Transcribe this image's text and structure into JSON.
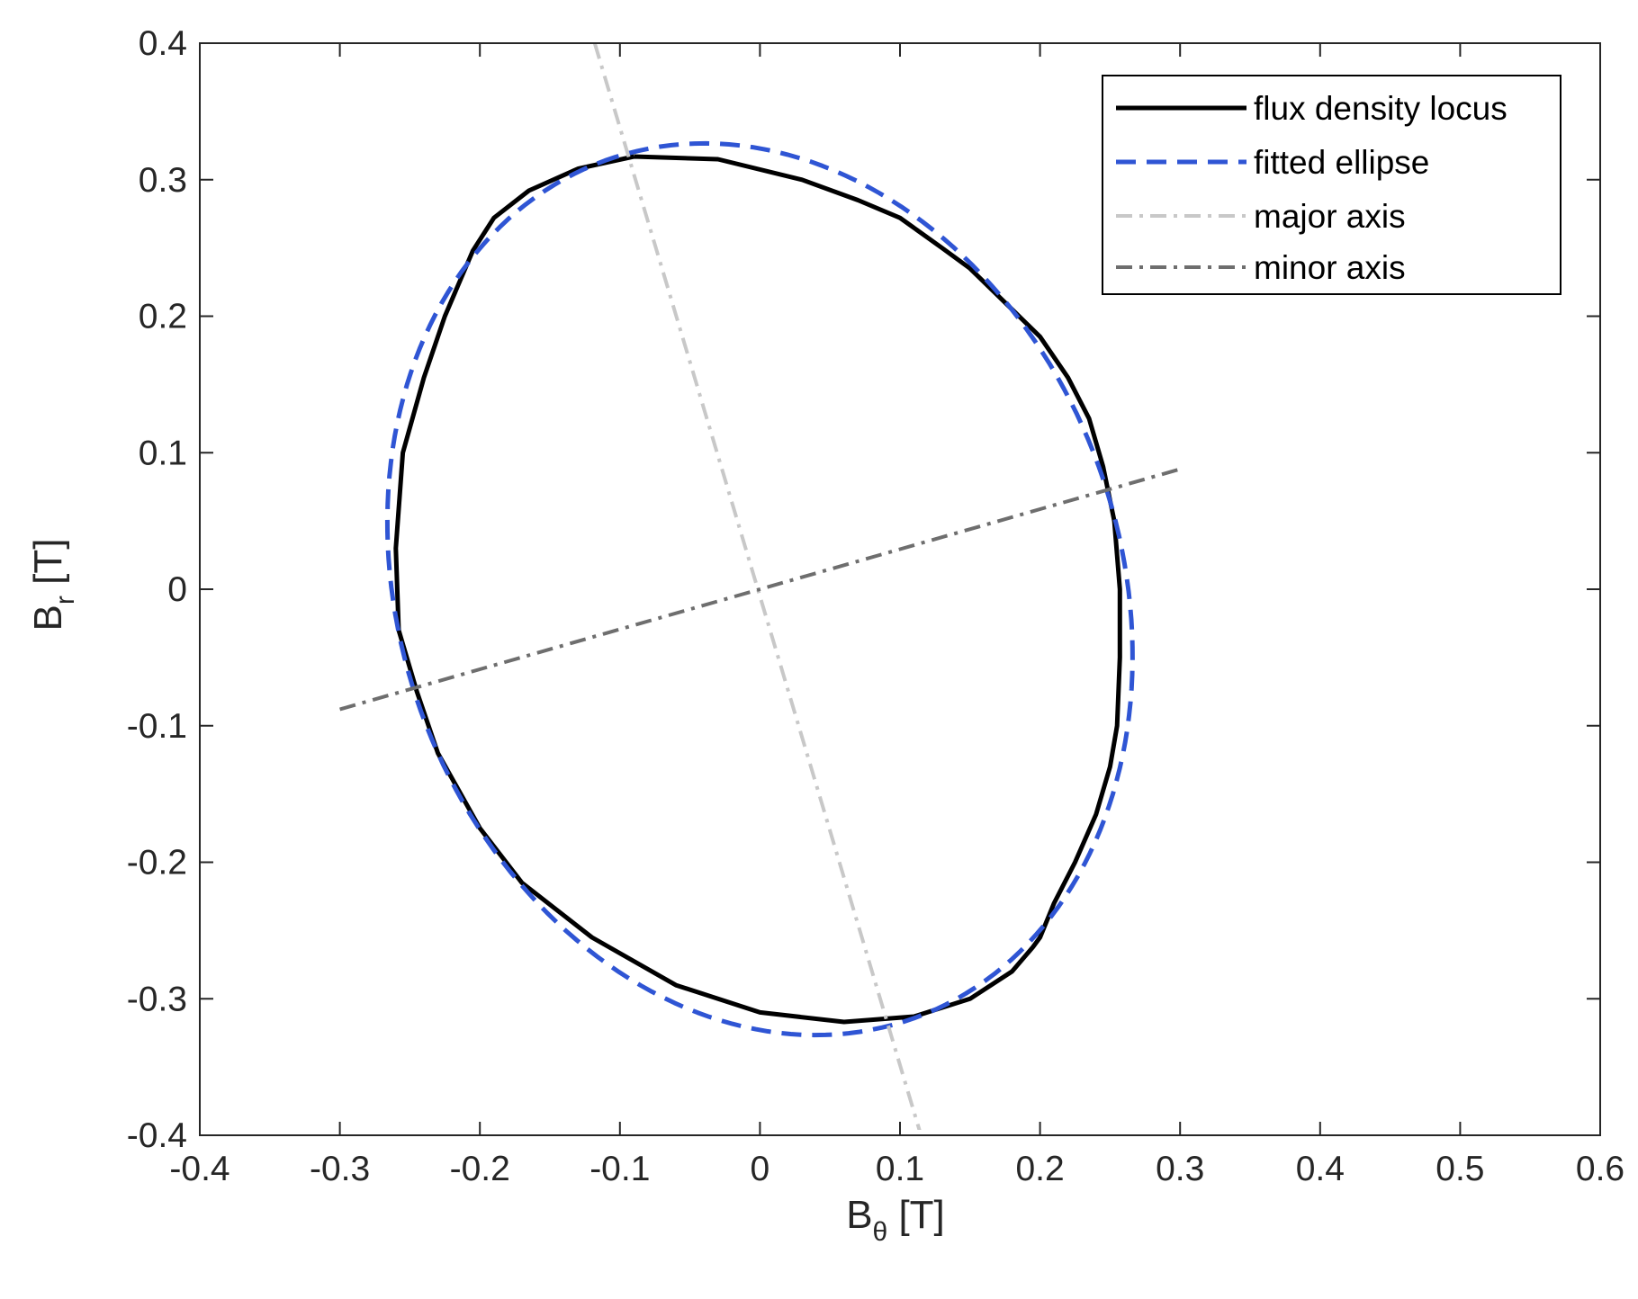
{
  "chart_data": {
    "type": "line",
    "title": "",
    "xlabel": {
      "main": "B",
      "sub": "θ",
      "unit": " [T]"
    },
    "ylabel": {
      "main": "B",
      "sub": "r",
      "unit": " [T]"
    },
    "xlim": [
      -0.4,
      0.6
    ],
    "ylim": [
      -0.4,
      0.4
    ],
    "xticks": [
      -0.4,
      -0.3,
      -0.2,
      -0.1,
      0,
      0.1,
      0.2,
      0.3,
      0.4,
      0.5,
      0.6
    ],
    "xtick_labels": [
      "-0.4",
      "-0.3",
      "-0.2",
      "-0.1",
      "0",
      "0.1",
      "0.2",
      "0.3",
      "0.4",
      "0.5",
      "0.6"
    ],
    "yticks": [
      -0.4,
      -0.3,
      -0.2,
      -0.1,
      0,
      0.1,
      0.2,
      0.3,
      0.4
    ],
    "ytick_labels": [
      "-0.4",
      "-0.3",
      "-0.2",
      "-0.1",
      "0",
      "0.1",
      "0.2",
      "0.3",
      "0.4"
    ],
    "grid": false,
    "legend_position": "top-right",
    "series": [
      {
        "name": "flux density locus",
        "style": "solid",
        "color": "#000000",
        "x": [
          -0.09,
          -0.03,
          0.03,
          0.07,
          0.1,
          0.13,
          0.15,
          0.175,
          0.2,
          0.22,
          0.235,
          0.245,
          0.253,
          0.257,
          0.257,
          0.255,
          0.25,
          0.24,
          0.225,
          0.21,
          0.2,
          0.195,
          0.18,
          0.15,
          0.11,
          0.06,
          0.0,
          -0.06,
          -0.12,
          -0.17,
          -0.2,
          -0.23,
          -0.245,
          -0.258,
          -0.26,
          -0.255,
          -0.24,
          -0.225,
          -0.205,
          -0.19,
          -0.165,
          -0.13,
          -0.09
        ],
        "y": [
          0.317,
          0.315,
          0.3,
          0.285,
          0.272,
          0.25,
          0.235,
          0.21,
          0.185,
          0.155,
          0.125,
          0.09,
          0.05,
          0.0,
          -0.05,
          -0.1,
          -0.13,
          -0.165,
          -0.2,
          -0.23,
          -0.255,
          -0.262,
          -0.28,
          -0.3,
          -0.313,
          -0.317,
          -0.31,
          -0.29,
          -0.255,
          -0.215,
          -0.175,
          -0.12,
          -0.075,
          -0.03,
          0.03,
          0.1,
          0.155,
          0.2,
          0.248,
          0.272,
          0.292,
          0.308,
          0.317
        ]
      },
      {
        "name": "fitted ellipse",
        "style": "dashed",
        "color": "#2f55d4",
        "ellipse": {
          "center": [
            0.0,
            0.0
          ],
          "semi_major": 0.333,
          "semi_minor": 0.258,
          "major_axis_angle_deg": 108
        }
      },
      {
        "name": "major axis",
        "style": "dashdot",
        "color": "#c8c8c8",
        "x": [
          -0.118,
          0.115
        ],
        "y": [
          0.4,
          -0.4
        ]
      },
      {
        "name": "minor axis",
        "style": "dashdot",
        "color": "#6e6e6e",
        "x": [
          -0.3,
          0.3
        ],
        "y": [
          -0.088,
          0.088
        ]
      }
    ]
  }
}
